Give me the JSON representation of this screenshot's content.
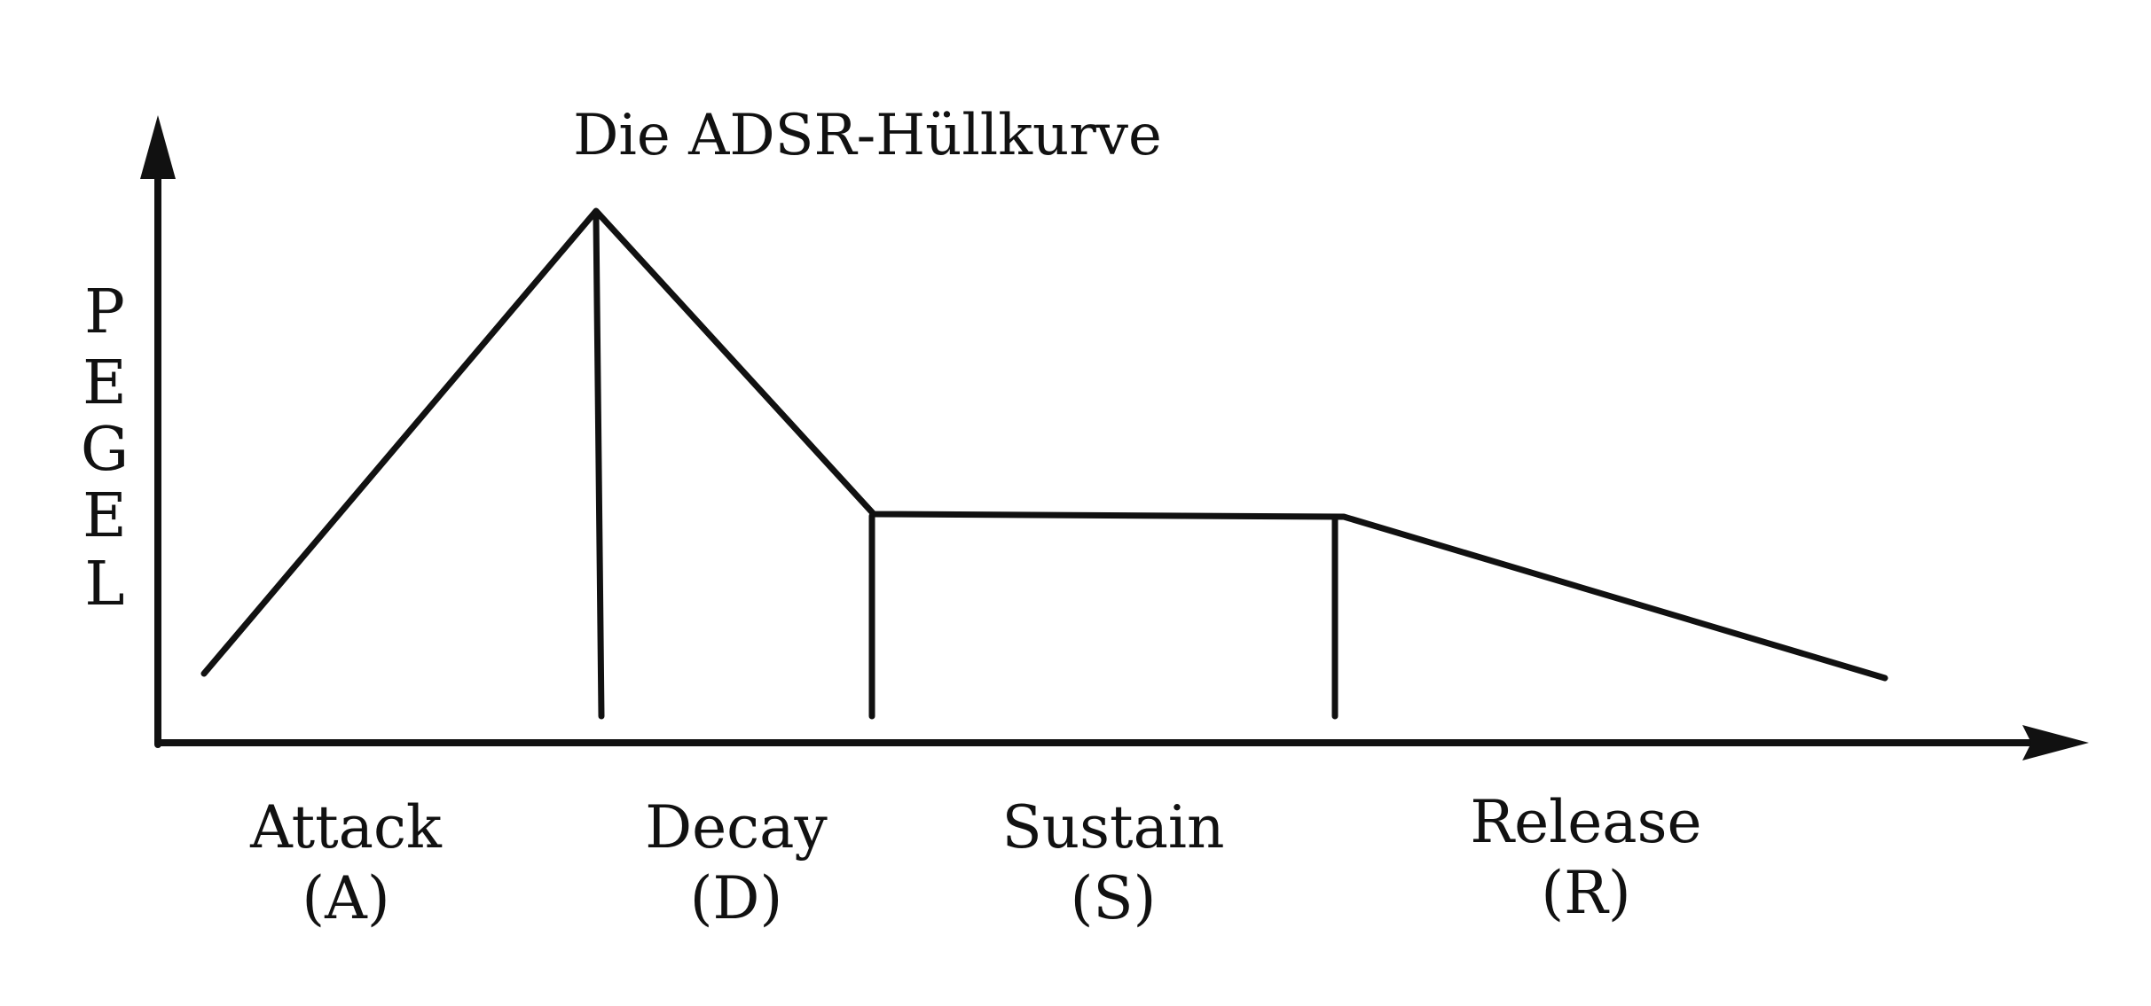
{
  "diagram": {
    "title": "Die ADSR-Hüllkurve",
    "ylabel_letters": [
      "P",
      "E",
      "G",
      "E",
      "L"
    ],
    "phases": [
      {
        "name": "Attack",
        "abbr": "(A)"
      },
      {
        "name": "Decay",
        "abbr": "(D)"
      },
      {
        "name": "Sustain",
        "abbr": "(S)"
      },
      {
        "name": "Release",
        "abbr": "(R)"
      }
    ],
    "line_color": "#111111",
    "background": "#ffffff"
  }
}
